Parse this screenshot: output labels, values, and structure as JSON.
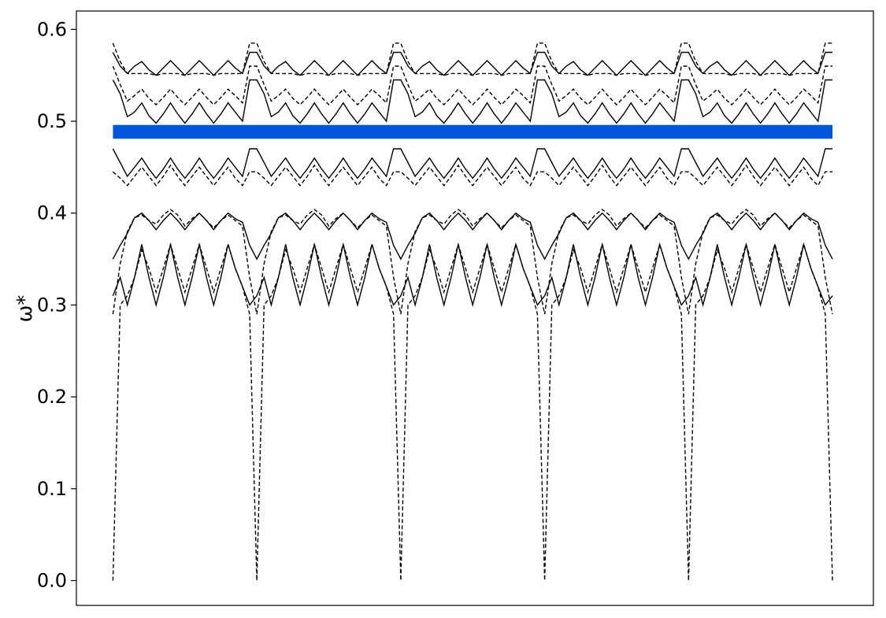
{
  "chart_data": {
    "type": "line",
    "title": "",
    "xlabel": "",
    "ylabel": "ω*",
    "ylim": [
      -0.027,
      0.62
    ],
    "xlim": [
      -0.25,
      5.2
    ],
    "x_ticks_shown": false,
    "y_ticks": [
      0.0,
      0.1,
      0.2,
      0.3,
      0.4,
      0.5,
      0.6
    ],
    "y_tick_labels": [
      "0.0",
      "0.1",
      "0.2",
      "0.3",
      "0.4",
      "0.5",
      "0.6"
    ],
    "grid": false,
    "legend": "none",
    "band_gap": {
      "y0": 0.481,
      "y1": 0.496,
      "x0": 0.0,
      "x1": 4.92,
      "color": "#0055dd"
    },
    "segments": 5,
    "series": [
      {
        "style": "dashed",
        "values": [
          0.0,
          0.3,
          0.31,
          0.33,
          0.36,
          0.34,
          0.314,
          0.34,
          0.366,
          0.34,
          0.314,
          0.34,
          0.366,
          0.34,
          0.314,
          0.34,
          0.366,
          0.34,
          0.32,
          0.29,
          0.0
        ]
      },
      {
        "style": "solid",
        "values": [
          0.31,
          0.33,
          0.3,
          0.33,
          0.366,
          0.33,
          0.3,
          0.33,
          0.366,
          0.33,
          0.3,
          0.33,
          0.366,
          0.33,
          0.3,
          0.33,
          0.366,
          0.34,
          0.32,
          0.3,
          0.31
        ]
      },
      {
        "style": "solid",
        "values": [
          0.35,
          0.365,
          0.378,
          0.395,
          0.4,
          0.392,
          0.382,
          0.392,
          0.4,
          0.392,
          0.382,
          0.392,
          0.4,
          0.392,
          0.382,
          0.392,
          0.4,
          0.394,
          0.39,
          0.365,
          0.35
        ]
      },
      {
        "style": "dashed",
        "values": [
          0.29,
          0.345,
          0.38,
          0.395,
          0.398,
          0.392,
          0.388,
          0.398,
          0.404,
          0.398,
          0.386,
          0.394,
          0.4,
          0.392,
          0.384,
          0.392,
          0.398,
          0.392,
          0.386,
          0.33,
          0.29
        ]
      },
      {
        "style": "solid",
        "values": [
          0.47,
          0.455,
          0.44,
          0.45,
          0.46,
          0.448,
          0.438,
          0.448,
          0.46,
          0.448,
          0.438,
          0.448,
          0.46,
          0.448,
          0.438,
          0.448,
          0.46,
          0.45,
          0.44,
          0.47,
          0.47
        ]
      },
      {
        "style": "dashed",
        "values": [
          0.445,
          0.438,
          0.43,
          0.44,
          0.45,
          0.44,
          0.43,
          0.44,
          0.452,
          0.44,
          0.43,
          0.44,
          0.45,
          0.44,
          0.43,
          0.44,
          0.45,
          0.438,
          0.43,
          0.445,
          0.445
        ]
      },
      {
        "style": "solid",
        "values": [
          0.545,
          0.53,
          0.505,
          0.51,
          0.52,
          0.506,
          0.498,
          0.508,
          0.52,
          0.508,
          0.498,
          0.508,
          0.52,
          0.508,
          0.498,
          0.508,
          0.52,
          0.51,
          0.5,
          0.545,
          0.545
        ]
      },
      {
        "style": "dashed",
        "values": [
          0.56,
          0.54,
          0.522,
          0.528,
          0.535,
          0.525,
          0.518,
          0.526,
          0.535,
          0.526,
          0.518,
          0.526,
          0.535,
          0.526,
          0.518,
          0.526,
          0.535,
          0.528,
          0.52,
          0.56,
          0.56
        ]
      },
      {
        "style": "solid",
        "values": [
          0.575,
          0.56,
          0.552,
          0.56,
          0.565,
          0.556,
          0.55,
          0.558,
          0.566,
          0.558,
          0.55,
          0.558,
          0.566,
          0.558,
          0.55,
          0.558,
          0.566,
          0.558,
          0.552,
          0.575,
          0.575
        ]
      },
      {
        "style": "dashed",
        "values": [
          0.585,
          0.565,
          0.552,
          0.552,
          0.552,
          0.552,
          0.55,
          0.552,
          0.552,
          0.552,
          0.55,
          0.552,
          0.552,
          0.552,
          0.55,
          0.552,
          0.552,
          0.552,
          0.552,
          0.585,
          0.585
        ]
      }
    ]
  }
}
